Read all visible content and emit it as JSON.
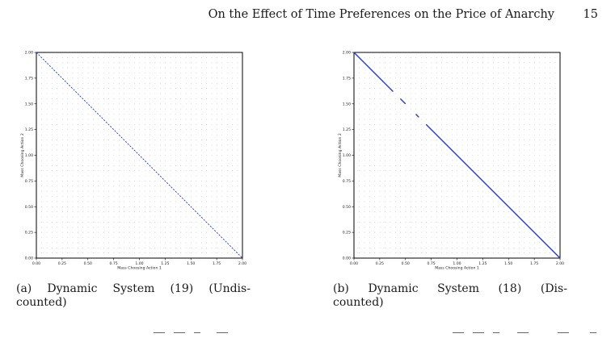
{
  "header": {
    "title": "On the Effect of Time Preferences on the Price of Anarchy",
    "page_number": "15"
  },
  "figures": [
    {
      "id": "a",
      "caption_line1": [
        "(a)",
        "Dynamic",
        "System",
        "(19)",
        "(Undis-"
      ],
      "caption_line2": "counted)"
    },
    {
      "id": "b",
      "caption_line1": [
        "(b)",
        "Dynamic",
        "System",
        "(18)",
        "(Dis-"
      ],
      "caption_line2": "counted)"
    }
  ],
  "chart_data": [
    {
      "type": "scatter",
      "title": "",
      "xlabel": "Mass Choosing Action 1",
      "ylabel": "Mass Choosing Action 2",
      "xlim": [
        0,
        2
      ],
      "ylim": [
        0,
        2
      ],
      "xticks": [
        "0.00",
        "0.25",
        "0.50",
        "0.75",
        "1.00",
        "1.25",
        "1.50",
        "1.75",
        "2.00"
      ],
      "yticks": [
        "0.00",
        "0.25",
        "0.50",
        "0.75",
        "1.00",
        "1.25",
        "1.50",
        "1.75",
        "2.00"
      ],
      "grid": "dotted",
      "series": [
        {
          "segments": [
            [
              [
                0,
                2
              ],
              [
                2,
                0
              ]
            ]
          ],
          "style": "dashed",
          "color": "#1f3fd0"
        }
      ]
    },
    {
      "type": "scatter",
      "title": "",
      "xlabel": "Mass Choosing Action 1",
      "ylabel": "Mass Choosing Action 2",
      "xlim": [
        0,
        2
      ],
      "ylim": [
        0,
        2
      ],
      "xticks": [
        "0.00",
        "0.25",
        "0.50",
        "0.75",
        "1.00",
        "1.25",
        "1.50",
        "1.75",
        "2.00"
      ],
      "yticks": [
        "0.00",
        "0.25",
        "0.50",
        "0.75",
        "1.00",
        "1.25",
        "1.50",
        "1.75",
        "2.00"
      ],
      "grid": "dotted",
      "series": [
        {
          "segments": [
            [
              [
                0,
                2
              ],
              [
                0.38,
                1.62
              ]
            ],
            [
              [
                0.45,
                1.55
              ],
              [
                0.5,
                1.5
              ]
            ],
            [
              [
                0.6,
                1.4
              ],
              [
                0.63,
                1.37
              ]
            ],
            [
              [
                0.7,
                1.3
              ],
              [
                2,
                0
              ]
            ]
          ],
          "style": "solid",
          "color": "#1f3fd0"
        }
      ]
    }
  ]
}
